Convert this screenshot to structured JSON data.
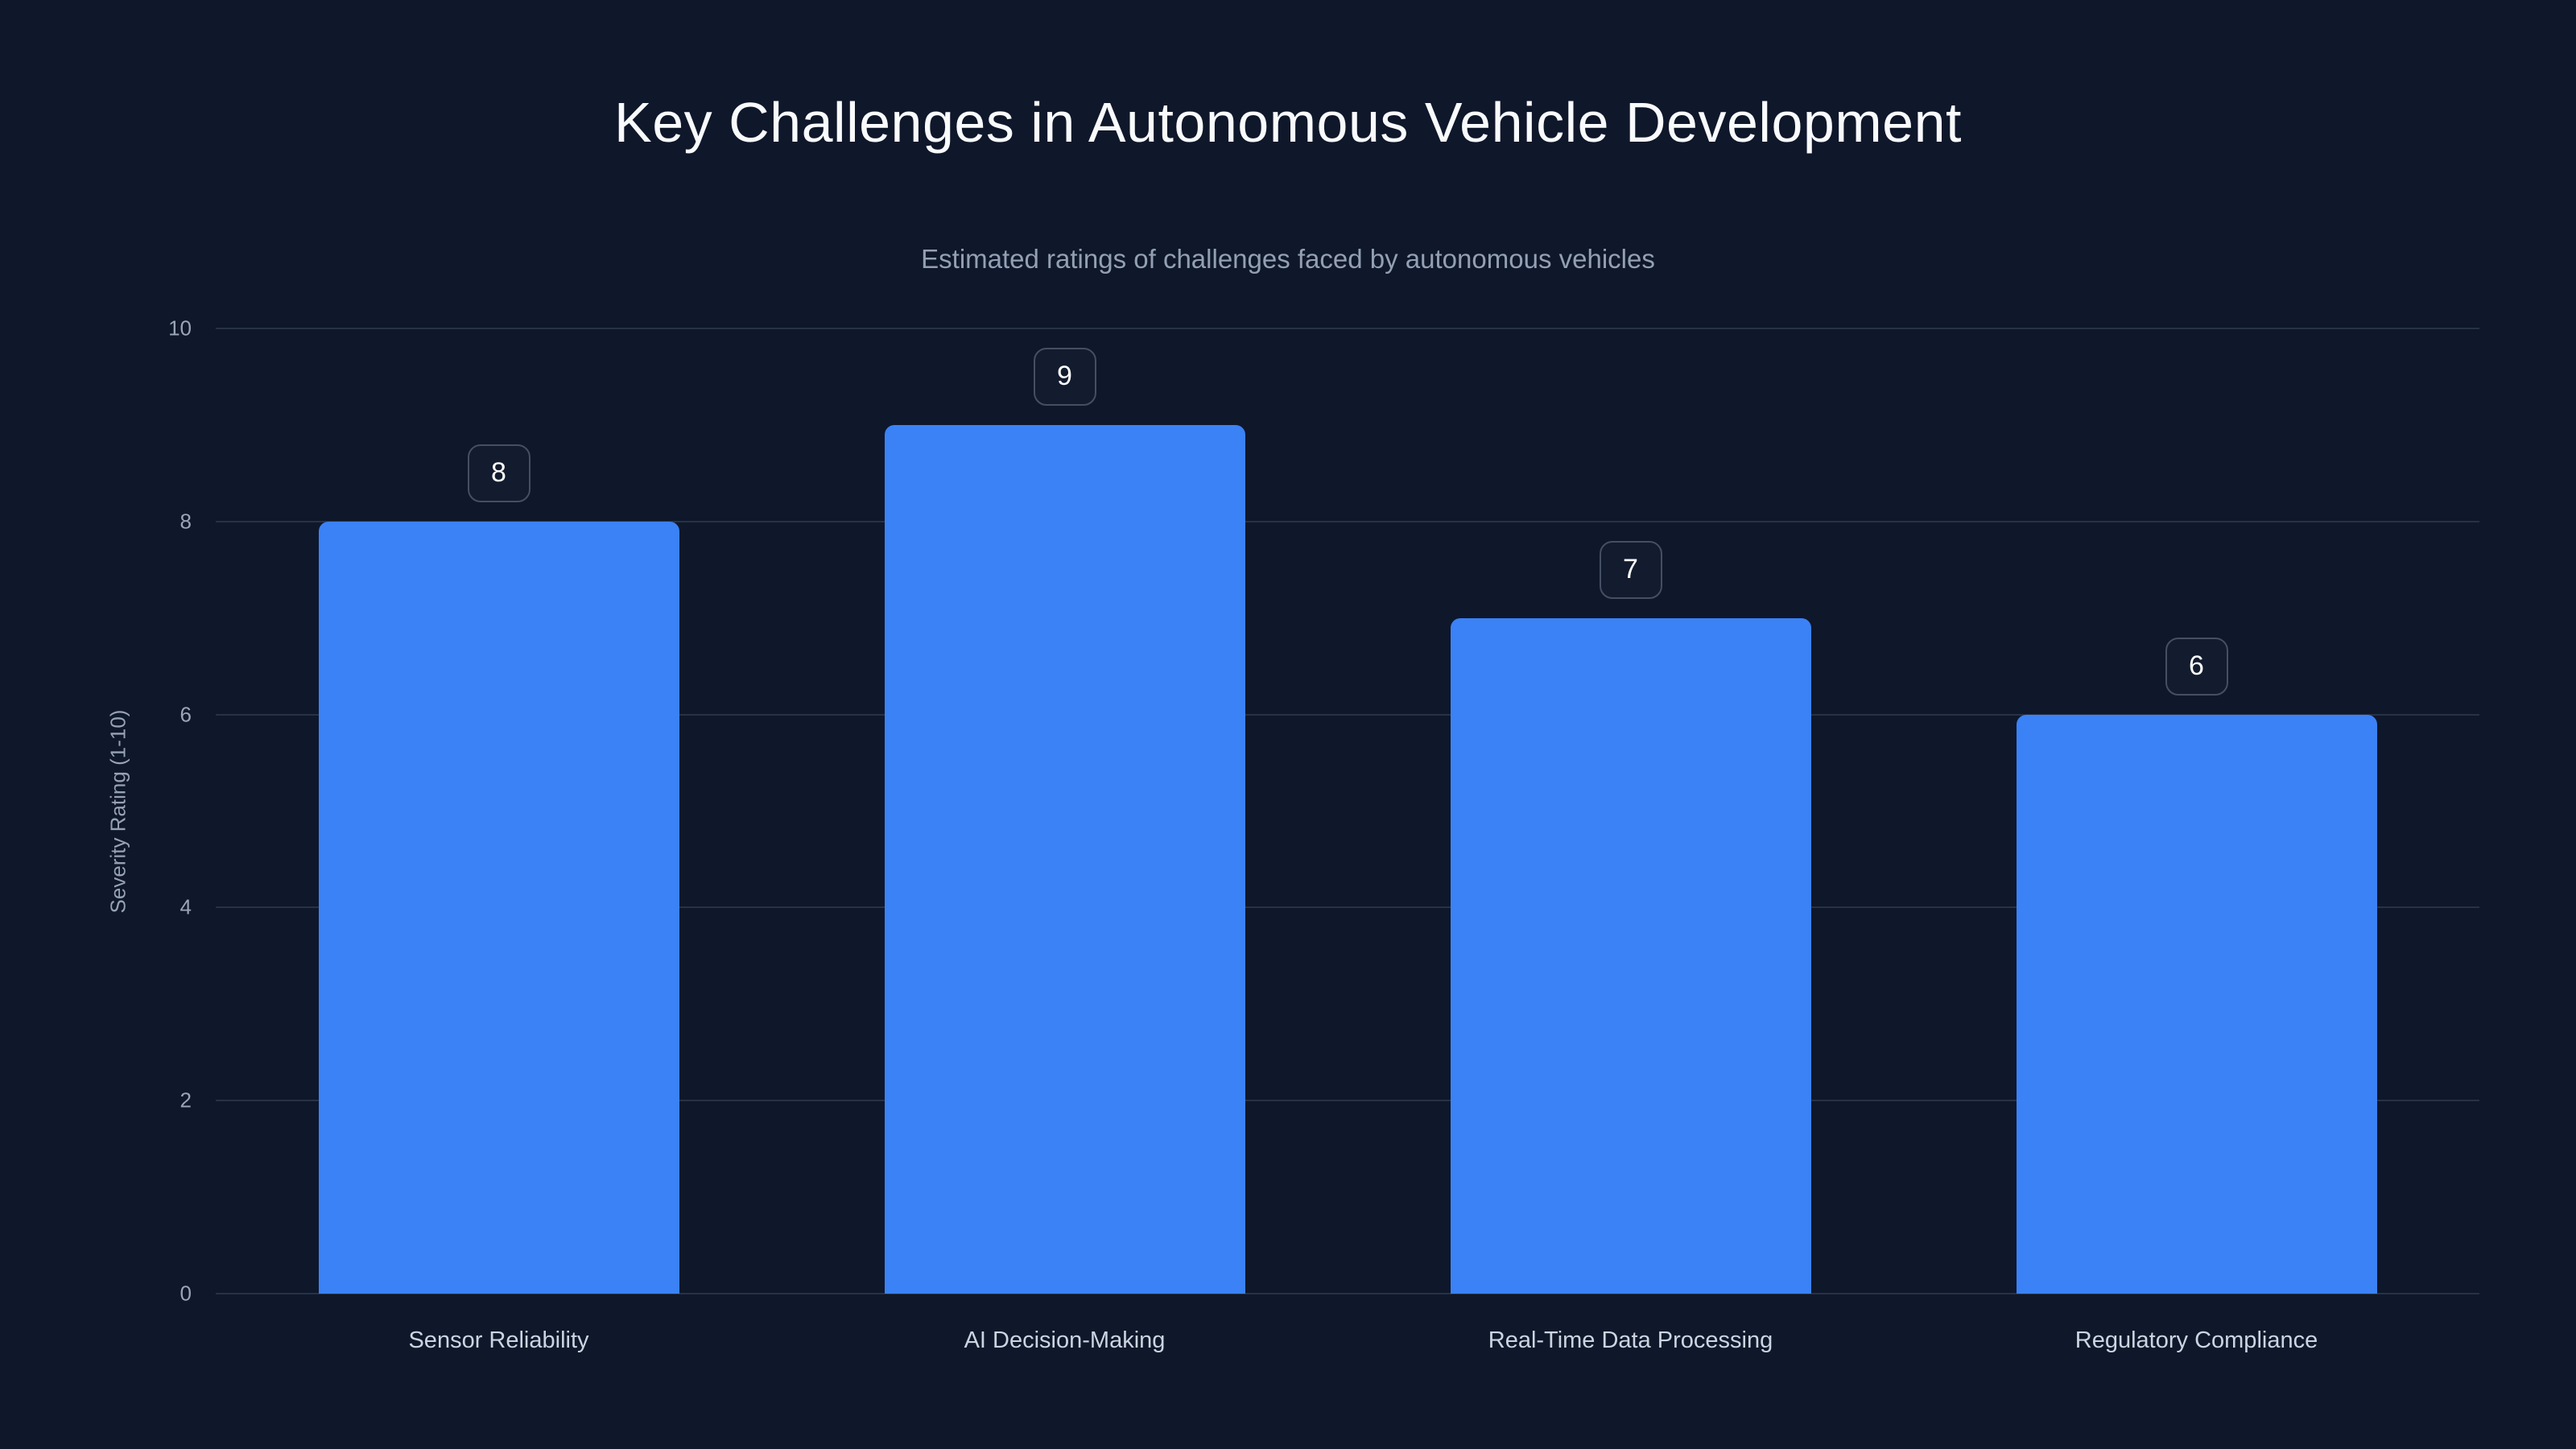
{
  "page": {
    "background_color": "#0f172a"
  },
  "chart_data": {
    "type": "bar",
    "title": "Key Challenges in Autonomous Vehicle Development",
    "subtitle": "Estimated ratings of challenges faced by autonomous vehicles",
    "categories": [
      "Sensor Reliability",
      "AI Decision-Making",
      "Real-Time Data Processing",
      "Regulatory Compliance"
    ],
    "values": [
      8,
      9,
      7,
      6
    ],
    "value_labels": [
      "8",
      "9",
      "7",
      "6"
    ],
    "xlabel": "",
    "ylabel": "Severity Rating (1-10)",
    "ylim": [
      0,
      10
    ],
    "yticks": [
      0,
      2,
      4,
      6,
      8,
      10
    ],
    "grid": "horizontal",
    "legend": "none",
    "bar_color": "#3b82f6",
    "grid_color": "#273246",
    "background_color": "#0f172a",
    "title_color": "#f8fafc",
    "subtitle_color": "#93a0b4",
    "tick_color": "#9aa6b8",
    "category_label_color": "#cbd5e1",
    "badge_border_color": "#454f63",
    "badge_text_color": "#ffffff"
  }
}
